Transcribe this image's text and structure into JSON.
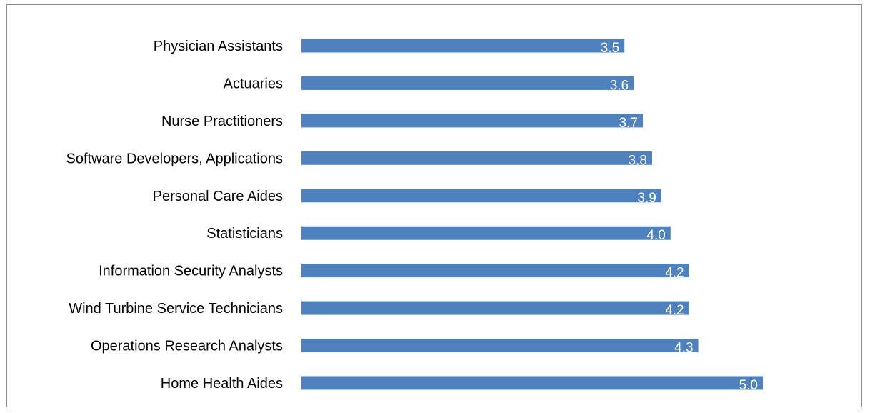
{
  "chart_data": {
    "type": "bar",
    "orientation": "horizontal",
    "categories": [
      "Physician Assistants",
      "Actuaries",
      "Nurse Practitioners",
      "Software Developers, Applications",
      "Personal Care Aides",
      "Statisticians",
      "Information Security Analysts",
      "Wind Turbine Service Technicians",
      "Operations Research Analysts",
      "Home Health Aides"
    ],
    "values": [
      3.5,
      3.6,
      3.7,
      3.8,
      3.9,
      4.0,
      4.2,
      4.2,
      4.3,
      5.0
    ],
    "data_labels": [
      "3.5",
      "3.6",
      "3.7",
      "3.8",
      "3.9",
      "4.0",
      "4.2",
      "4.2",
      "4.3",
      "5.0"
    ],
    "title": "",
    "xlabel": "",
    "ylabel": "",
    "xlim": [
      0,
      5.0
    ],
    "grid": false,
    "legend": "none",
    "bar_color": "#4f81bd",
    "label_color": "#ffffff"
  }
}
